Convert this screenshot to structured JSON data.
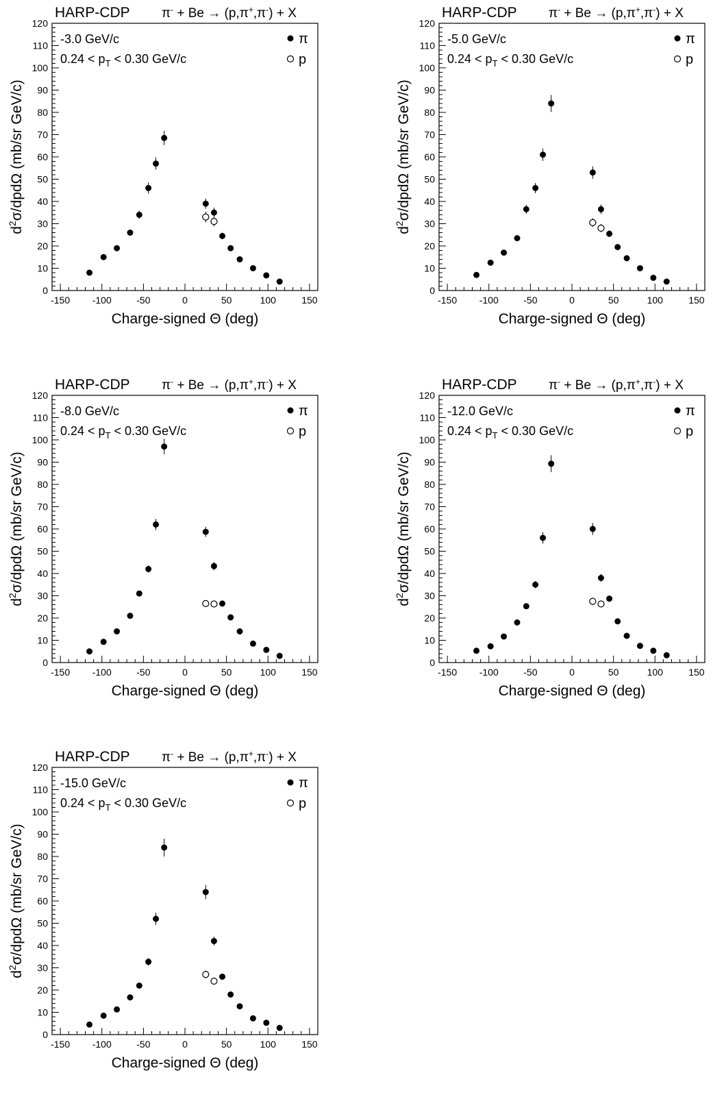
{
  "chart_data": [
    {
      "type": "scatter",
      "experiment": "HARP-CDP",
      "reaction_prefix": "π",
      "reaction_middle": " + Be → (p,π",
      "reaction_end": ") + X",
      "momentum": "-3.0 GeV/c",
      "pt_range_lo": "0.24 < p",
      "pt_sub": "T",
      "pt_range_hi": " < 0.30 GeV/c",
      "xlabel": "Charge-signed Θ (deg)",
      "ylabel_d": "d",
      "ylabel_sup": "2",
      "ylabel_rest": "σ/dpdΩ (mb/sr GeV/c)",
      "xlim": [
        -160,
        160
      ],
      "ylim": [
        0,
        120
      ],
      "xticks": [
        -150,
        -100,
        -50,
        0,
        50,
        100,
        150
      ],
      "yticks": [
        0,
        10,
        20,
        30,
        40,
        50,
        60,
        70,
        80,
        90,
        100,
        110,
        120
      ],
      "legend": [
        {
          "symbol": "filled-circle",
          "label": "π"
        },
        {
          "symbol": "open-circle",
          "label": "p"
        }
      ],
      "series": [
        {
          "name": "π",
          "marker": "filled",
          "x": [
            -115,
            -98,
            -82,
            -66,
            -55,
            -44,
            -35,
            -25,
            25,
            35,
            45,
            55,
            66,
            82,
            98,
            114
          ],
          "y": [
            8.0,
            15.0,
            19.0,
            26.0,
            34.0,
            46.0,
            57.0,
            68.5,
            39.0,
            35.0,
            24.5,
            19.0,
            14.0,
            10.0,
            6.8,
            4.0
          ],
          "err": [
            0.8,
            1.0,
            1.0,
            1.3,
            1.8,
            2.5,
            2.7,
            3.2,
            2.3,
            2.2,
            1.5,
            1.0,
            0.9,
            0.7,
            0.5,
            0.4
          ]
        },
        {
          "name": "p",
          "marker": "open",
          "x": [
            25,
            35
          ],
          "y": [
            33.0,
            31.0
          ],
          "err": [
            2.4,
            2.2
          ]
        }
      ]
    },
    {
      "type": "scatter",
      "experiment": "HARP-CDP",
      "reaction_prefix": "π",
      "reaction_middle": " + Be → (p,π",
      "reaction_end": ") + X",
      "momentum": "-5.0 GeV/c",
      "pt_range_lo": "0.24 < p",
      "pt_sub": "T",
      "pt_range_hi": " < 0.30 GeV/c",
      "xlabel": "Charge-signed Θ (deg)",
      "ylabel_d": "d",
      "ylabel_sup": "2",
      "ylabel_rest": "σ/dpdΩ (mb/sr GeV/c)",
      "xlim": [
        -160,
        160
      ],
      "ylim": [
        0,
        120
      ],
      "xticks": [
        -150,
        -100,
        -50,
        0,
        50,
        100,
        150
      ],
      "yticks": [
        0,
        10,
        20,
        30,
        40,
        50,
        60,
        70,
        80,
        90,
        100,
        110,
        120
      ],
      "legend": [
        {
          "symbol": "filled-circle",
          "label": "π"
        },
        {
          "symbol": "open-circle",
          "label": "p"
        }
      ],
      "series": [
        {
          "name": "π",
          "marker": "filled",
          "x": [
            -115,
            -98,
            -82,
            -66,
            -55,
            -44,
            -35,
            -25,
            25,
            35,
            45,
            55,
            66,
            82,
            98,
            114
          ],
          "y": [
            7.0,
            12.5,
            17.0,
            23.5,
            36.5,
            46.0,
            61.0,
            84.0,
            53.0,
            36.5,
            25.5,
            19.5,
            14.5,
            10.0,
            5.7,
            4.0
          ],
          "err": [
            0.7,
            0.9,
            1.0,
            1.3,
            2.0,
            2.3,
            2.8,
            3.8,
            2.8,
            2.1,
            1.5,
            1.1,
            0.9,
            0.7,
            0.5,
            0.4
          ]
        },
        {
          "name": "p",
          "marker": "open",
          "x": [
            25,
            35
          ],
          "y": [
            30.5,
            28.0
          ],
          "err": [
            2.0,
            1.8
          ]
        }
      ]
    },
    {
      "type": "scatter",
      "experiment": "HARP-CDP",
      "reaction_prefix": "π",
      "reaction_middle": " + Be → (p,π",
      "reaction_end": ") + X",
      "momentum": "-8.0 GeV/c",
      "pt_range_lo": "0.24 < p",
      "pt_sub": "T",
      "pt_range_hi": " < 0.30 GeV/c",
      "xlabel": "Charge-signed Θ (deg)",
      "ylabel_d": "d",
      "ylabel_sup": "2",
      "ylabel_rest": "σ/dpdΩ (mb/sr GeV/c)",
      "xlim": [
        -160,
        160
      ],
      "ylim": [
        0,
        120
      ],
      "xticks": [
        -150,
        -100,
        -50,
        0,
        50,
        100,
        150
      ],
      "yticks": [
        0,
        10,
        20,
        30,
        40,
        50,
        60,
        70,
        80,
        90,
        100,
        110,
        120
      ],
      "legend": [
        {
          "symbol": "filled-circle",
          "label": "π"
        },
        {
          "symbol": "open-circle",
          "label": "p"
        }
      ],
      "series": [
        {
          "name": "π",
          "marker": "filled",
          "x": [
            -115,
            -98,
            -82,
            -66,
            -55,
            -44,
            -35,
            -25,
            25,
            35,
            45,
            55,
            66,
            82,
            98,
            114
          ],
          "y": [
            5.0,
            9.3,
            14.0,
            21.0,
            31.0,
            42.0,
            62.0,
            97.0,
            58.7,
            43.3,
            26.5,
            20.3,
            14.0,
            8.5,
            5.7,
            3.0
          ],
          "err": [
            0.5,
            0.7,
            0.8,
            1.0,
            1.2,
            1.6,
            2.5,
            3.5,
            2.3,
            1.9,
            1.2,
            1.0,
            0.8,
            0.6,
            0.4,
            0.3
          ]
        },
        {
          "name": "p",
          "marker": "open",
          "x": [
            25,
            35
          ],
          "y": [
            26.5,
            26.3
          ],
          "err": [
            1.5,
            1.4
          ]
        }
      ]
    },
    {
      "type": "scatter",
      "experiment": "HARP-CDP",
      "reaction_prefix": "π",
      "reaction_middle": " + Be → (p,π",
      "reaction_end": ") + X",
      "momentum": "-12.0 GeV/c",
      "pt_range_lo": "0.24 < p",
      "pt_sub": "T",
      "pt_range_hi": " < 0.30 GeV/c",
      "xlabel": "Charge-signed Θ (deg)",
      "ylabel_d": "d",
      "ylabel_sup": "2",
      "ylabel_rest": "σ/dpdΩ (mb/sr GeV/c)",
      "xlim": [
        -160,
        160
      ],
      "ylim": [
        0,
        120
      ],
      "xticks": [
        -150,
        -100,
        -50,
        0,
        50,
        100,
        150
      ],
      "yticks": [
        0,
        10,
        20,
        30,
        40,
        50,
        60,
        70,
        80,
        90,
        100,
        110,
        120
      ],
      "legend": [
        {
          "symbol": "filled-circle",
          "label": "π"
        },
        {
          "symbol": "open-circle",
          "label": "p"
        }
      ],
      "series": [
        {
          "name": "π",
          "marker": "filled",
          "x": [
            -115,
            -98,
            -82,
            -66,
            -55,
            -44,
            -35,
            -25,
            25,
            35,
            45,
            55,
            66,
            82,
            98,
            114
          ],
          "y": [
            5.3,
            7.3,
            11.7,
            18.0,
            25.3,
            35.0,
            56.0,
            89.3,
            60.0,
            38.0,
            28.7,
            18.5,
            12.0,
            7.5,
            5.3,
            3.3
          ],
          "err": [
            0.5,
            0.6,
            0.8,
            1.0,
            1.2,
            1.6,
            2.6,
            3.8,
            2.7,
            1.8,
            1.4,
            1.0,
            0.8,
            0.6,
            0.5,
            0.3
          ]
        },
        {
          "name": "p",
          "marker": "open",
          "x": [
            25,
            35
          ],
          "y": [
            27.5,
            26.3
          ],
          "err": [
            1.6,
            1.5
          ]
        }
      ]
    },
    {
      "type": "scatter",
      "experiment": "HARP-CDP",
      "reaction_prefix": "π",
      "reaction_middle": " + Be → (p,π",
      "reaction_end": ") + X",
      "momentum": "-15.0 GeV/c",
      "pt_range_lo": "0.24 < p",
      "pt_sub": "T",
      "pt_range_hi": " < 0.30 GeV/c",
      "xlabel": "Charge-signed Θ (deg)",
      "ylabel_d": "d",
      "ylabel_sup": "2",
      "ylabel_rest": "σ/dpdΩ (mb/sr GeV/c)",
      "xlim": [
        -160,
        160
      ],
      "ylim": [
        0,
        120
      ],
      "xticks": [
        -150,
        -100,
        -50,
        0,
        50,
        100,
        150
      ],
      "yticks": [
        0,
        10,
        20,
        30,
        40,
        50,
        60,
        70,
        80,
        90,
        100,
        110,
        120
      ],
      "legend": [
        {
          "symbol": "filled-circle",
          "label": "π"
        },
        {
          "symbol": "open-circle",
          "label": "p"
        }
      ],
      "series": [
        {
          "name": "π",
          "marker": "filled",
          "x": [
            -115,
            -98,
            -82,
            -66,
            -55,
            -44,
            -35,
            -25,
            25,
            35,
            45,
            55,
            66,
            82,
            98,
            114
          ],
          "y": [
            4.5,
            8.5,
            11.3,
            16.7,
            22.0,
            32.7,
            52.0,
            84.0,
            64.0,
            42.0,
            26.0,
            18.0,
            12.7,
            7.3,
            5.3,
            3.0
          ],
          "err": [
            0.5,
            0.6,
            0.8,
            0.9,
            1.1,
            1.7,
            2.7,
            4.0,
            3.2,
            2.0,
            1.3,
            1.0,
            0.8,
            0.6,
            0.4,
            0.3
          ]
        },
        {
          "name": "p",
          "marker": "open",
          "x": [
            25,
            35
          ],
          "y": [
            27.0,
            24.0
          ],
          "err": [
            1.7,
            1.5
          ]
        }
      ]
    }
  ]
}
